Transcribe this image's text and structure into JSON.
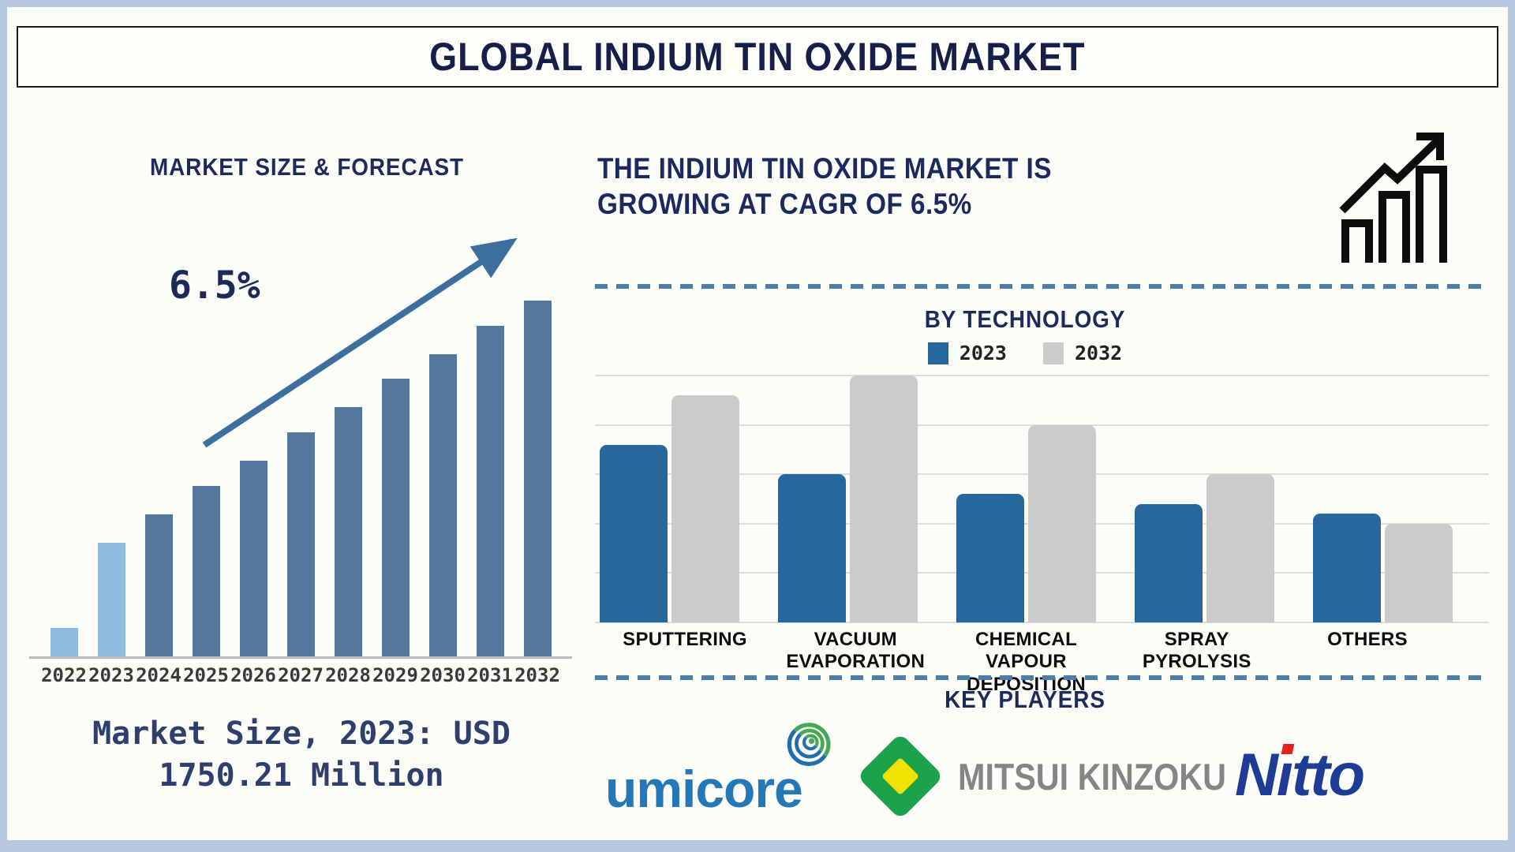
{
  "page": {
    "title": "GLOBAL INDIUM TIN OXIDE MARKET"
  },
  "left_panel": {
    "heading": "MARKET SIZE & FORECAST",
    "cagr_annotation": "6.5%",
    "market_size_note": "Market Size, 2023: USD 1750.21 Million"
  },
  "right_panel": {
    "heading": "THE INDIUM TIN OXIDE MARKET IS GROWING AT CAGR OF 6.5%",
    "by_technology_title": "BY TECHNOLOGY",
    "legend": [
      {
        "label": "2023",
        "color": "#27679b"
      },
      {
        "label": "2032",
        "color": "#cbcbcb"
      }
    ],
    "key_players_title": "KEY PLAYERS",
    "key_players": [
      {
        "name": "umicore",
        "text_color": "#2478b7"
      },
      {
        "name": "MITSUI KINZOKU",
        "text_color": "#858585"
      },
      {
        "name": "Nitto",
        "text_color": "#1e3c96"
      }
    ]
  },
  "icons": {
    "growth_chart_icon": "outlined bar chart with rising zigzag arrow, black strokes",
    "trend_arrow_icon": "straight up-right steel-blue arrow over forecast bars",
    "umicore_swirl_icon": "concentric green/blue spiral rings",
    "mitsui_diamond_icon": "green rhombus with yellow rhombus center"
  },
  "colors": {
    "page_border": "#b6c8df",
    "heading_navy": "#1c2b5a",
    "dashed_divider": "#4c7ea9",
    "axis_gray": "#b9b9b9",
    "gridline_gray": "#dcdcdc"
  },
  "chart_data": [
    {
      "type": "bar",
      "title": "MARKET SIZE & FORECAST",
      "categories": [
        "2022",
        "2023",
        "2024",
        "2025",
        "2026",
        "2027",
        "2028",
        "2029",
        "2030",
        "2031",
        "2032"
      ],
      "values": [
        8,
        32,
        40,
        48,
        55,
        63,
        70,
        78,
        85,
        93,
        100
      ],
      "values_unit": "percent of tallest bar (no numeric y-axis shown)",
      "known_point": {
        "year": "2023",
        "value": "USD 1750.21 Million"
      },
      "annotation": "6.5%",
      "trend_arrow": true,
      "xlabel": "",
      "ylabel": "",
      "grid": false,
      "bar_colors": {
        "highlight_years": [
          "2022",
          "2023"
        ],
        "highlight": "#8fbbe3",
        "default": "#54779e"
      }
    },
    {
      "type": "bar",
      "title": "BY TECHNOLOGY",
      "categories": [
        "SPUTTERING",
        "VACUUM EVAPORATION",
        "CHEMICAL VAPOUR DEPOSITION",
        "SPRAY PYROLYSIS",
        "OTHERS"
      ],
      "series": [
        {
          "name": "2023",
          "color": "#27679b",
          "values": [
            72,
            60,
            52,
            48,
            44
          ]
        },
        {
          "name": "2032",
          "color": "#cbcbcb",
          "values": [
            92,
            100,
            80,
            60,
            40
          ]
        }
      ],
      "values_unit": "percent of chart height (no numeric y-axis shown)",
      "ylim": [
        0,
        100
      ],
      "grid": true,
      "gridline_interval_pct": 20,
      "legend_position": "top"
    }
  ]
}
